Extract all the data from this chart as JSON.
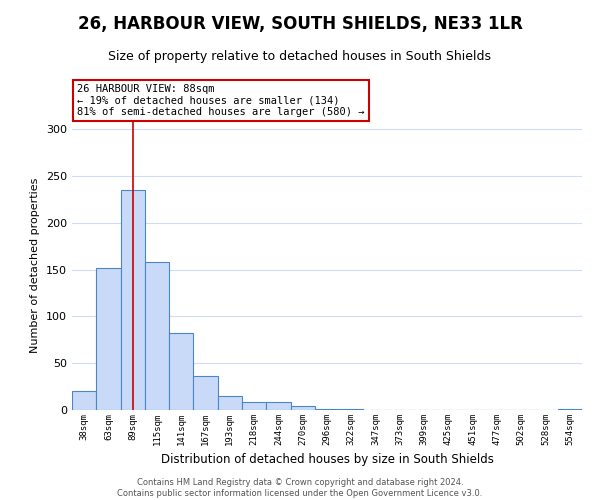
{
  "title": "26, HARBOUR VIEW, SOUTH SHIELDS, NE33 1LR",
  "subtitle": "Size of property relative to detached houses in South Shields",
  "xlabel": "Distribution of detached houses by size in South Shields",
  "ylabel": "Number of detached properties",
  "bin_labels": [
    "38sqm",
    "63sqm",
    "89sqm",
    "115sqm",
    "141sqm",
    "167sqm",
    "193sqm",
    "218sqm",
    "244sqm",
    "270sqm",
    "296sqm",
    "322sqm",
    "347sqm",
    "373sqm",
    "399sqm",
    "425sqm",
    "451sqm",
    "477sqm",
    "502sqm",
    "528sqm",
    "554sqm"
  ],
  "bar_heights": [
    20,
    152,
    235,
    158,
    82,
    36,
    15,
    9,
    9,
    4,
    1,
    1,
    0,
    0,
    0,
    0,
    0,
    0,
    0,
    0,
    1
  ],
  "bar_color": "#c9daf8",
  "bar_edge_color": "#4a86c8",
  "property_line_x": 2,
  "property_line_color": "#cc0000",
  "annotation_title": "26 HARBOUR VIEW: 88sqm",
  "annotation_line1": "← 19% of detached houses are smaller (134)",
  "annotation_line2": "81% of semi-detached houses are larger (580) →",
  "annotation_box_color": "#cc0000",
  "ylim": [
    0,
    310
  ],
  "yticks": [
    0,
    50,
    100,
    150,
    200,
    250,
    300
  ],
  "footer_line1": "Contains HM Land Registry data © Crown copyright and database right 2024.",
  "footer_line2": "Contains public sector information licensed under the Open Government Licence v3.0.",
  "bg_color": "#ffffff",
  "grid_color": "#ccddf5",
  "title_fontsize": 12,
  "subtitle_fontsize": 9
}
